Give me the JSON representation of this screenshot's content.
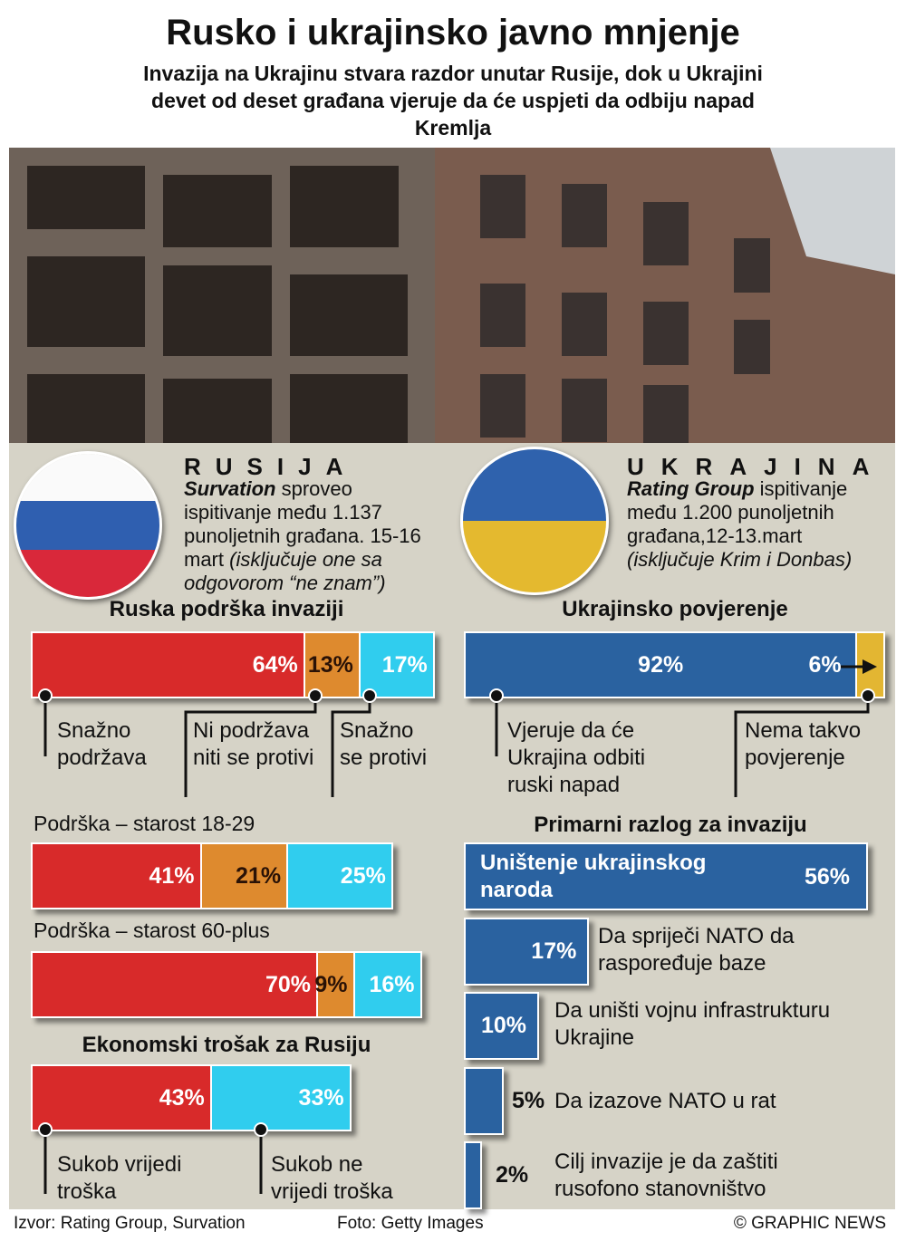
{
  "header": {
    "title": "Rusko i ukrajinsko javno mnjenje",
    "subtitle": "Invazija na Ukrajinu stvara razdor unutar Rusije, dok u Ukrajini devet od deset građana vjeruje da će uspjeti da odbiju napad Kremlja"
  },
  "russia": {
    "heading": "RUSIJA",
    "pollster": "Survation",
    "text": " sproveo ispitivanje među 1.137 punoljetnih građana. 15-16 mart ",
    "note": "(isključuje one sa odgovorom “ne znam”)",
    "flag_colors": [
      "#ffffff",
      "#2f5fb0",
      "#d9283a"
    ]
  },
  "ukraine": {
    "heading": "UKRAJINA",
    "pollster": "Rating Group",
    "text": " ispitivanje među 1.200 punoljetnih građana,12-13.mart",
    "note": "(isključuje Krim i Donbas)",
    "flag_colors": [
      "#2f62ad",
      "#e4b92f"
    ]
  },
  "colors": {
    "support": "#d82a2a",
    "neutral": "#de8a2e",
    "oppose": "#30cdee",
    "ukr_blue": "#2a62a0",
    "ukr_yellow": "#e3b632",
    "panel": "#d6d3c7"
  },
  "chart_data": [
    {
      "type": "bar",
      "title": "Ruska podrška invaziji",
      "unit": "%",
      "series": [
        {
          "name": "Snažno podržava",
          "value": 64,
          "label": "64%"
        },
        {
          "name": "Ni podržava niti se protivi",
          "value": 13,
          "label": "13%"
        },
        {
          "name": "Snažno se protivi",
          "value": 17,
          "label": "17%"
        }
      ]
    },
    {
      "type": "bar",
      "title": "Podrška – starost 18-29",
      "unit": "%",
      "series": [
        {
          "value": 41,
          "label": "41%"
        },
        {
          "value": 21,
          "label": "21%"
        },
        {
          "value": 25,
          "label": "25%"
        }
      ]
    },
    {
      "type": "bar",
      "title": "Podrška – starost 60-plus",
      "unit": "%",
      "series": [
        {
          "value": 70,
          "label": "70%"
        },
        {
          "value": 9,
          "label": "9%"
        },
        {
          "value": 16,
          "label": "16%"
        }
      ]
    },
    {
      "type": "bar",
      "title": "Ekonomski trošak za Rusiju",
      "unit": "%",
      "series": [
        {
          "name": "Sukob vrijedi troška",
          "value": 43,
          "label": "43%"
        },
        {
          "name": "Sukob ne vrijedi troška",
          "value": 33,
          "label": "33%"
        }
      ]
    },
    {
      "type": "bar",
      "title": "Ukrajinsko povjerenje",
      "unit": "%",
      "series": [
        {
          "name": "Vjeruje da će Ukrajina odbiti ruski napad",
          "value": 92,
          "label": "92%"
        },
        {
          "name": "Nema takvo povjerenje",
          "value": 6,
          "label": "6%"
        }
      ]
    },
    {
      "type": "bar",
      "title": "Primarni razlog za invaziju",
      "unit": "%",
      "categories": [
        "Uništenje ukrajinskog naroda",
        "Da spriječi NATO da raspoređuje baze",
        "Da uništi vojnu infrastrukturu Ukrajine",
        "Da izazove NATO u rat",
        "Cilj invazije je da zaštiti rusofono stanovništvo"
      ],
      "values": [
        56,
        17,
        10,
        5,
        2
      ],
      "labels": [
        "56%",
        "17%",
        "10%",
        "5%",
        "2%"
      ]
    }
  ],
  "footer": {
    "source": "Izvor: Rating Group, Survation",
    "photo": "Foto: Getty Images",
    "copyright": "© GRAPHIC NEWS"
  }
}
